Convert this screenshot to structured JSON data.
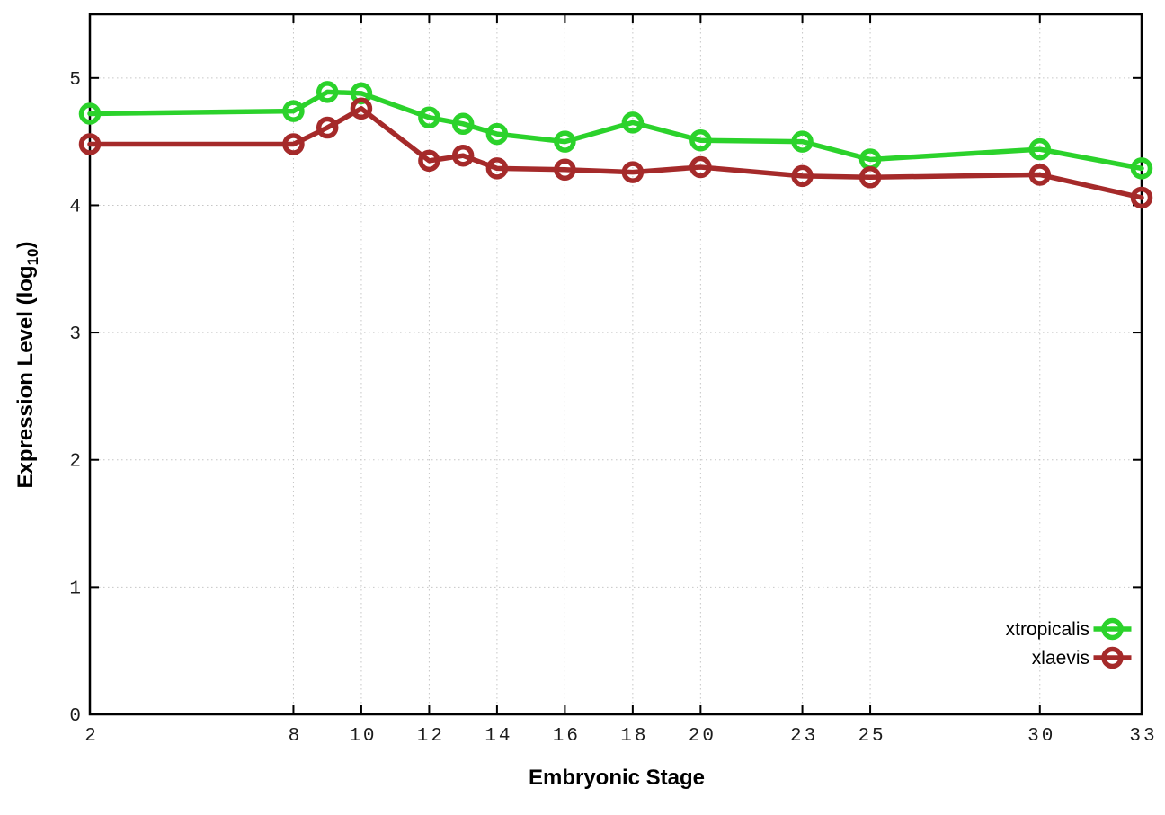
{
  "chart_data": {
    "type": "line",
    "title": "",
    "xlabel": "Embryonic Stage",
    "ylabel": {
      "pre": "Expression Level (log",
      "sub": "10",
      "post": ")"
    },
    "x": [
      2,
      8,
      9,
      10,
      12,
      13,
      14,
      16,
      18,
      20,
      23,
      25,
      30,
      33
    ],
    "series": [
      {
        "name": "xtropicalis",
        "color": "#2bd22b",
        "values": [
          4.72,
          4.74,
          4.89,
          4.88,
          4.69,
          4.64,
          4.56,
          4.5,
          4.65,
          4.51,
          4.5,
          4.36,
          4.44,
          4.29
        ]
      },
      {
        "name": "xlaevis",
        "color": "#a52a2a",
        "values": [
          4.48,
          4.48,
          4.61,
          4.76,
          4.35,
          4.39,
          4.29,
          4.28,
          4.26,
          4.3,
          4.23,
          4.22,
          4.24,
          4.06
        ]
      }
    ],
    "x_tick_labels": [
      "2",
      "8",
      "10",
      "12",
      "14",
      "16",
      "18",
      "20",
      "23",
      "25",
      "30",
      "33"
    ],
    "x_tick_values": [
      2,
      8,
      10,
      12,
      14,
      16,
      18,
      20,
      23,
      25,
      30,
      33
    ],
    "y_tick_labels": [
      "0",
      "1",
      "2",
      "3",
      "4",
      "5"
    ],
    "y_tick_values": [
      0,
      1,
      2,
      3,
      4,
      5
    ],
    "xlim": [
      2,
      33
    ],
    "ylim": [
      0,
      5.5
    ],
    "grid": true,
    "marker": "open-circle",
    "legend_position": "bottom-right",
    "background_color": "#ffffff",
    "border_color": "#000000",
    "grid_color": "#c6c6c6"
  }
}
